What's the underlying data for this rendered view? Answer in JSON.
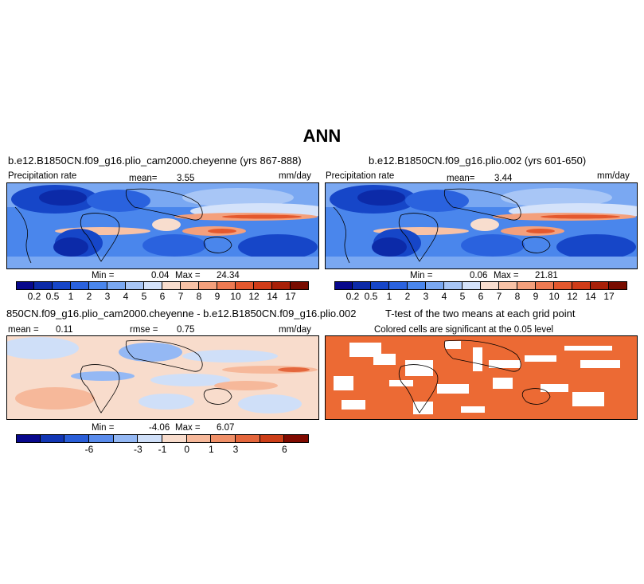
{
  "main_title": "ANN",
  "panels": [
    {
      "title": "b.e12.B1850CN.f09_g16.plio_cam2000.cheyenne (yrs 867-888)",
      "left_label": "Precipitation rate",
      "mean_label": "mean=",
      "mean_value": "3.55",
      "units": "mm/day",
      "min_label": "Min =",
      "min_value": "0.04",
      "max_label": "Max =",
      "max_value": "24.34"
    },
    {
      "title": "b.e12.B1850CN.f09_g16.plio.002 (yrs 601-650)",
      "left_label": "Precipitation rate",
      "mean_label": "mean=",
      "mean_value": "3.44",
      "units": "mm/day",
      "min_label": "Min =",
      "min_value": "0.06",
      "max_label": "Max =",
      "max_value": "21.81"
    },
    {
      "title": "850CN.f09_g16.plio_cam2000.cheyenne - b.e12.B1850CN.f09_g16.plio.002",
      "mean_label": "mean =",
      "mean_value": "0.11",
      "rmse_label": "rmse =",
      "rmse_value": "0.75",
      "units": "mm/day",
      "min_label": "Min =",
      "min_value": "-4.06",
      "max_label": "Max =",
      "max_value": "6.07"
    },
    {
      "title": "T-test of the two means at each grid point",
      "subtitle": "Colored cells are significant at the 0.05 level"
    }
  ],
  "colorbars": {
    "precip": {
      "colors": [
        "#08088c",
        "#0c2aa8",
        "#1646c8",
        "#2a62de",
        "#4a86ec",
        "#7aa8f2",
        "#a8c6f6",
        "#d4e2fa",
        "#f8ddce",
        "#f8c2a6",
        "#f4a07c",
        "#ee7a52",
        "#e4582e",
        "#d03c18",
        "#a82008",
        "#780c00"
      ],
      "labels": [
        "0.2",
        "0.5",
        "1",
        "2",
        "3",
        "4",
        "5",
        "6",
        "7",
        "8",
        "9",
        "10",
        "12",
        "14",
        "17"
      ]
    },
    "diff": {
      "colors": [
        "#08088c",
        "#1236b4",
        "#2a5ed8",
        "#5a8cec",
        "#94b8f4",
        "#cfdff8",
        "#f8dccc",
        "#f6b89a",
        "#f09068",
        "#e4663c",
        "#cc3e18",
        "#800a00"
      ],
      "labels": [
        "-6",
        "-3",
        "-1",
        "0",
        "1",
        "3",
        "6"
      ],
      "label_positions": [
        3,
        5,
        6,
        7,
        8,
        9,
        11
      ]
    }
  },
  "chart_data": [
    {
      "type": "heatmap",
      "title": "b.e12.B1850CN.f09_g16.plio_cam2000.cheyenne (yrs 867-888)",
      "variable": "Precipitation rate",
      "units": "mm/day",
      "mean": 3.55,
      "min": 0.04,
      "max": 24.34,
      "contour_levels": [
        0.2,
        0.5,
        1,
        2,
        3,
        4,
        5,
        6,
        7,
        8,
        9,
        10,
        12,
        14,
        17
      ]
    },
    {
      "type": "heatmap",
      "title": "b.e12.B1850CN.f09_g16.plio.002 (yrs 601-650)",
      "variable": "Precipitation rate",
      "units": "mm/day",
      "mean": 3.44,
      "min": 0.06,
      "max": 21.81,
      "contour_levels": [
        0.2,
        0.5,
        1,
        2,
        3,
        4,
        5,
        6,
        7,
        8,
        9,
        10,
        12,
        14,
        17
      ]
    },
    {
      "type": "heatmap",
      "title": "850CN.f09_g16.plio_cam2000.cheyenne - b.e12.B1850CN.f09_g16.plio.002",
      "units": "mm/day",
      "mean": 0.11,
      "rmse": 0.75,
      "min": -4.06,
      "max": 6.07,
      "contour_levels": [
        -6,
        -3,
        -1,
        0,
        1,
        3,
        6
      ]
    },
    {
      "type": "heatmap",
      "title": "T-test of the two means at each grid point",
      "subtitle": "Colored cells are significant at the 0.05 level",
      "significance_level": 0.05
    }
  ]
}
